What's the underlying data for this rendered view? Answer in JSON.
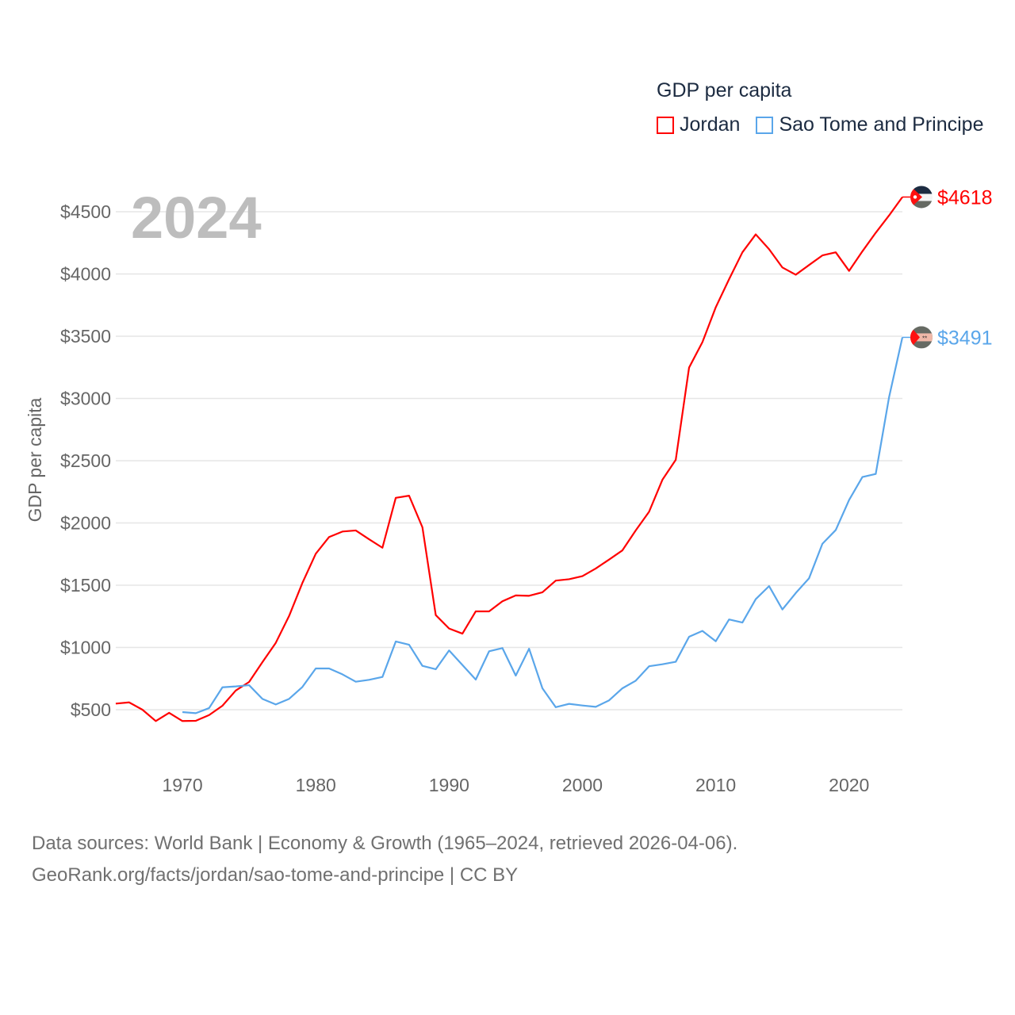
{
  "legend": {
    "title": "GDP per capita",
    "items": [
      {
        "label": "Jordan",
        "color": "#ff0000"
      },
      {
        "label": "Sao Tome and Principe",
        "color": "#5aa6ea"
      }
    ]
  },
  "footer": {
    "line1": "Data sources: World Bank | Economy & Growth (1965–2024, retrieved 2026-04-06).",
    "line2": "GeoRank.org/facts/jordan/sao-tome-and-principe | CC BY"
  },
  "chart_data": {
    "type": "line",
    "title": "GDP per capita",
    "year_label": "2024",
    "xlabel": "",
    "ylabel": "GDP per capita",
    "xlim": [
      1965,
      2024
    ],
    "ylim": [
      500,
      4500
    ],
    "yticks": [
      500,
      1000,
      1500,
      2000,
      2500,
      3000,
      3500,
      4000,
      4500
    ],
    "ytick_labels": [
      "$500",
      "$1000",
      "$1500",
      "$2000",
      "$2500",
      "$3000",
      "$3500",
      "$4000",
      "$4500"
    ],
    "xticks": [
      1970,
      1980,
      1990,
      2000,
      2010,
      2020
    ],
    "xtick_labels": [
      "1970",
      "1980",
      "1990",
      "2000",
      "2010",
      "2020"
    ],
    "grid": true,
    "legend_position": "top-right",
    "series": [
      {
        "name": "Jordan",
        "color": "#ff0000",
        "end_label": "$4618",
        "flag": "jordan-flag",
        "start_year": 1965,
        "values": [
          549,
          559,
          500,
          409,
          475,
          409,
          411,
          457,
          532,
          654,
          723,
          882,
          1037,
          1253,
          1519,
          1753,
          1887,
          1931,
          1940,
          1869,
          1801,
          2202,
          2219,
          1965,
          1260,
          1152,
          1111,
          1290,
          1290,
          1371,
          1418,
          1415,
          1443,
          1537,
          1548,
          1573,
          1634,
          1706,
          1780,
          1940,
          2090,
          2347,
          2507,
          3248,
          3452,
          3732,
          3958,
          4174,
          4318,
          4199,
          4052,
          3994,
          4072,
          4149,
          4174,
          4025,
          4182,
          4331,
          4470,
          4618
        ]
      },
      {
        "name": "Sao Tome and Principe",
        "color": "#5aa6ea",
        "end_label": "$3491",
        "flag": "sao-tome-flag",
        "start_year": 1970,
        "values": [
          481,
          472,
          513,
          680,
          687,
          697,
          587,
          542,
          587,
          683,
          831,
          831,
          784,
          725,
          740,
          763,
          1048,
          1022,
          852,
          825,
          976,
          859,
          742,
          969,
          995,
          774,
          990,
          672,
          520,
          547,
          534,
          523,
          575,
          672,
          733,
          849,
          865,
          885,
          1086,
          1133,
          1050,
          1225,
          1200,
          1388,
          1493,
          1305,
          1437,
          1556,
          1833,
          1943,
          2184,
          2369,
          2394,
          3010,
          3491
        ]
      }
    ]
  }
}
